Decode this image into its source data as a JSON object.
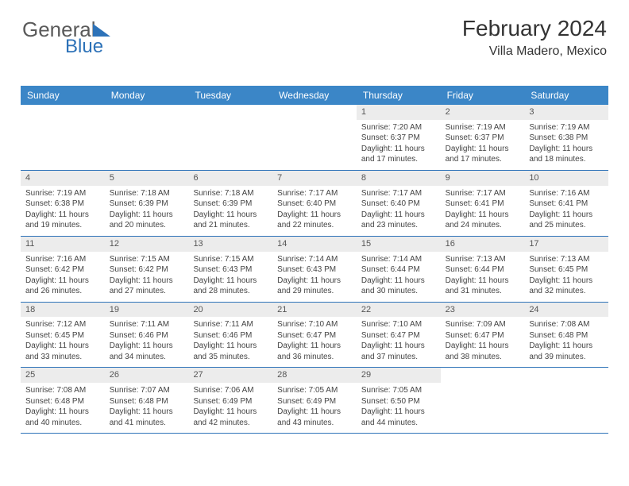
{
  "logo": {
    "text1": "General",
    "text2": "Blue"
  },
  "header": {
    "month": "February 2024",
    "location": "Villa Madero, Mexico"
  },
  "colors": {
    "header_bg": "#3b86c7",
    "header_text": "#ffffff",
    "daynum_bg": "#ececec",
    "week_border": "#2d72b8",
    "text": "#444444",
    "logo_blue": "#2d72b8"
  },
  "fonts": {
    "title_pt": 28,
    "location_pt": 16,
    "dayheader_pt": 12,
    "body_pt": 10
  },
  "day_names": [
    "Sunday",
    "Monday",
    "Tuesday",
    "Wednesday",
    "Thursday",
    "Friday",
    "Saturday"
  ],
  "weeks": [
    [
      {
        "num": "",
        "sunrise": "",
        "sunset": "",
        "daylight1": "",
        "daylight2": ""
      },
      {
        "num": "",
        "sunrise": "",
        "sunset": "",
        "daylight1": "",
        "daylight2": ""
      },
      {
        "num": "",
        "sunrise": "",
        "sunset": "",
        "daylight1": "",
        "daylight2": ""
      },
      {
        "num": "",
        "sunrise": "",
        "sunset": "",
        "daylight1": "",
        "daylight2": ""
      },
      {
        "num": "1",
        "sunrise": "Sunrise: 7:20 AM",
        "sunset": "Sunset: 6:37 PM",
        "daylight1": "Daylight: 11 hours",
        "daylight2": "and 17 minutes."
      },
      {
        "num": "2",
        "sunrise": "Sunrise: 7:19 AM",
        "sunset": "Sunset: 6:37 PM",
        "daylight1": "Daylight: 11 hours",
        "daylight2": "and 17 minutes."
      },
      {
        "num": "3",
        "sunrise": "Sunrise: 7:19 AM",
        "sunset": "Sunset: 6:38 PM",
        "daylight1": "Daylight: 11 hours",
        "daylight2": "and 18 minutes."
      }
    ],
    [
      {
        "num": "4",
        "sunrise": "Sunrise: 7:19 AM",
        "sunset": "Sunset: 6:38 PM",
        "daylight1": "Daylight: 11 hours",
        "daylight2": "and 19 minutes."
      },
      {
        "num": "5",
        "sunrise": "Sunrise: 7:18 AM",
        "sunset": "Sunset: 6:39 PM",
        "daylight1": "Daylight: 11 hours",
        "daylight2": "and 20 minutes."
      },
      {
        "num": "6",
        "sunrise": "Sunrise: 7:18 AM",
        "sunset": "Sunset: 6:39 PM",
        "daylight1": "Daylight: 11 hours",
        "daylight2": "and 21 minutes."
      },
      {
        "num": "7",
        "sunrise": "Sunrise: 7:17 AM",
        "sunset": "Sunset: 6:40 PM",
        "daylight1": "Daylight: 11 hours",
        "daylight2": "and 22 minutes."
      },
      {
        "num": "8",
        "sunrise": "Sunrise: 7:17 AM",
        "sunset": "Sunset: 6:40 PM",
        "daylight1": "Daylight: 11 hours",
        "daylight2": "and 23 minutes."
      },
      {
        "num": "9",
        "sunrise": "Sunrise: 7:17 AM",
        "sunset": "Sunset: 6:41 PM",
        "daylight1": "Daylight: 11 hours",
        "daylight2": "and 24 minutes."
      },
      {
        "num": "10",
        "sunrise": "Sunrise: 7:16 AM",
        "sunset": "Sunset: 6:41 PM",
        "daylight1": "Daylight: 11 hours",
        "daylight2": "and 25 minutes."
      }
    ],
    [
      {
        "num": "11",
        "sunrise": "Sunrise: 7:16 AM",
        "sunset": "Sunset: 6:42 PM",
        "daylight1": "Daylight: 11 hours",
        "daylight2": "and 26 minutes."
      },
      {
        "num": "12",
        "sunrise": "Sunrise: 7:15 AM",
        "sunset": "Sunset: 6:42 PM",
        "daylight1": "Daylight: 11 hours",
        "daylight2": "and 27 minutes."
      },
      {
        "num": "13",
        "sunrise": "Sunrise: 7:15 AM",
        "sunset": "Sunset: 6:43 PM",
        "daylight1": "Daylight: 11 hours",
        "daylight2": "and 28 minutes."
      },
      {
        "num": "14",
        "sunrise": "Sunrise: 7:14 AM",
        "sunset": "Sunset: 6:43 PM",
        "daylight1": "Daylight: 11 hours",
        "daylight2": "and 29 minutes."
      },
      {
        "num": "15",
        "sunrise": "Sunrise: 7:14 AM",
        "sunset": "Sunset: 6:44 PM",
        "daylight1": "Daylight: 11 hours",
        "daylight2": "and 30 minutes."
      },
      {
        "num": "16",
        "sunrise": "Sunrise: 7:13 AM",
        "sunset": "Sunset: 6:44 PM",
        "daylight1": "Daylight: 11 hours",
        "daylight2": "and 31 minutes."
      },
      {
        "num": "17",
        "sunrise": "Sunrise: 7:13 AM",
        "sunset": "Sunset: 6:45 PM",
        "daylight1": "Daylight: 11 hours",
        "daylight2": "and 32 minutes."
      }
    ],
    [
      {
        "num": "18",
        "sunrise": "Sunrise: 7:12 AM",
        "sunset": "Sunset: 6:45 PM",
        "daylight1": "Daylight: 11 hours",
        "daylight2": "and 33 minutes."
      },
      {
        "num": "19",
        "sunrise": "Sunrise: 7:11 AM",
        "sunset": "Sunset: 6:46 PM",
        "daylight1": "Daylight: 11 hours",
        "daylight2": "and 34 minutes."
      },
      {
        "num": "20",
        "sunrise": "Sunrise: 7:11 AM",
        "sunset": "Sunset: 6:46 PM",
        "daylight1": "Daylight: 11 hours",
        "daylight2": "and 35 minutes."
      },
      {
        "num": "21",
        "sunrise": "Sunrise: 7:10 AM",
        "sunset": "Sunset: 6:47 PM",
        "daylight1": "Daylight: 11 hours",
        "daylight2": "and 36 minutes."
      },
      {
        "num": "22",
        "sunrise": "Sunrise: 7:10 AM",
        "sunset": "Sunset: 6:47 PM",
        "daylight1": "Daylight: 11 hours",
        "daylight2": "and 37 minutes."
      },
      {
        "num": "23",
        "sunrise": "Sunrise: 7:09 AM",
        "sunset": "Sunset: 6:47 PM",
        "daylight1": "Daylight: 11 hours",
        "daylight2": "and 38 minutes."
      },
      {
        "num": "24",
        "sunrise": "Sunrise: 7:08 AM",
        "sunset": "Sunset: 6:48 PM",
        "daylight1": "Daylight: 11 hours",
        "daylight2": "and 39 minutes."
      }
    ],
    [
      {
        "num": "25",
        "sunrise": "Sunrise: 7:08 AM",
        "sunset": "Sunset: 6:48 PM",
        "daylight1": "Daylight: 11 hours",
        "daylight2": "and 40 minutes."
      },
      {
        "num": "26",
        "sunrise": "Sunrise: 7:07 AM",
        "sunset": "Sunset: 6:48 PM",
        "daylight1": "Daylight: 11 hours",
        "daylight2": "and 41 minutes."
      },
      {
        "num": "27",
        "sunrise": "Sunrise: 7:06 AM",
        "sunset": "Sunset: 6:49 PM",
        "daylight1": "Daylight: 11 hours",
        "daylight2": "and 42 minutes."
      },
      {
        "num": "28",
        "sunrise": "Sunrise: 7:05 AM",
        "sunset": "Sunset: 6:49 PM",
        "daylight1": "Daylight: 11 hours",
        "daylight2": "and 43 minutes."
      },
      {
        "num": "29",
        "sunrise": "Sunrise: 7:05 AM",
        "sunset": "Sunset: 6:50 PM",
        "daylight1": "Daylight: 11 hours",
        "daylight2": "and 44 minutes."
      },
      {
        "num": "",
        "sunrise": "",
        "sunset": "",
        "daylight1": "",
        "daylight2": ""
      },
      {
        "num": "",
        "sunrise": "",
        "sunset": "",
        "daylight1": "",
        "daylight2": ""
      }
    ]
  ]
}
